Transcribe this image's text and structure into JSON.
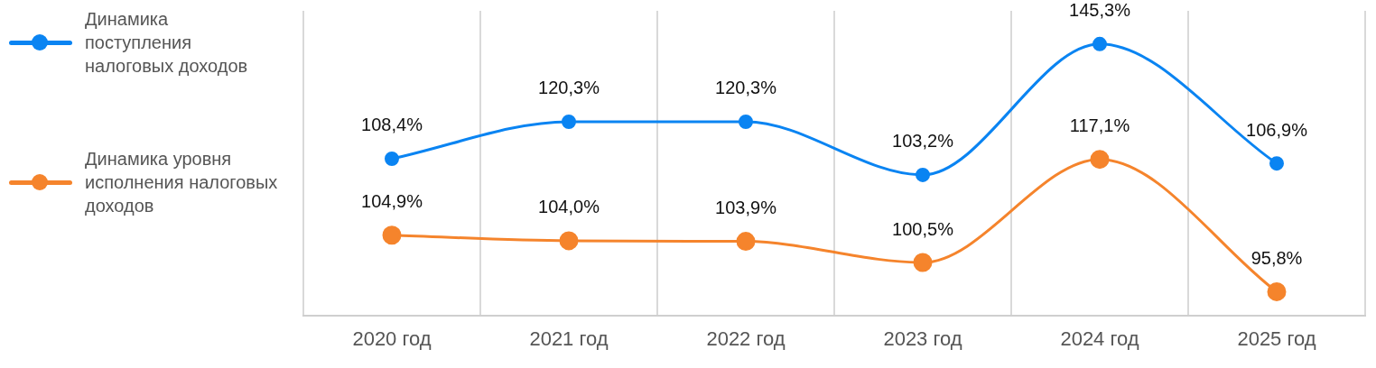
{
  "chart_data": {
    "type": "line",
    "categories": [
      "2020 год",
      "2021 год",
      "2022 год",
      "2023 год",
      "2024 год",
      "2025 год"
    ],
    "series": [
      {
        "name": "Динамика поступления налоговых доходов",
        "color": "#0a84f2",
        "values": [
          108.4,
          120.3,
          120.3,
          103.2,
          145.3,
          106.9
        ],
        "value_labels": [
          "108,4%",
          "120,3%",
          "120,3%",
          "103,2%",
          "145,3%",
          "106,9%"
        ]
      },
      {
        "name": "Динамика уровня исполнения налоговых доходов",
        "color": "#f5842c",
        "axis": "y2",
        "values": [
          104.9,
          104.0,
          103.9,
          100.5,
          117.1,
          95.8
        ],
        "value_labels": [
          "104,9%",
          "104,0%",
          "103,9%",
          "100,5%",
          "117,1%",
          "95,8%"
        ]
      }
    ],
    "ylim": [
      58,
      156
    ],
    "y2lim": [
      92,
      141
    ],
    "grid": "x",
    "legend": "left",
    "tick_labels": "x",
    "marker": "circle",
    "line_style": "solid"
  }
}
